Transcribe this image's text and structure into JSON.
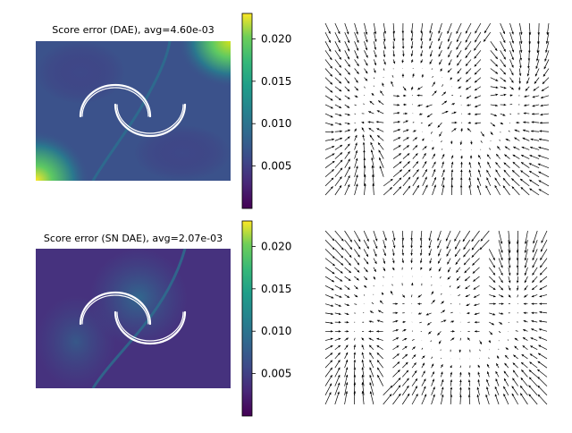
{
  "chart_data": [
    {
      "type": "heatmap",
      "title": "Score error (DAE), avg=4.60e-03",
      "colormap": "viridis",
      "colorbar": {
        "range": [
          0.0,
          0.023
        ],
        "ticks": [
          0.005,
          0.01,
          0.015,
          0.02
        ],
        "tick_labels": [
          "0.005",
          "0.010",
          "0.015",
          "0.020"
        ]
      },
      "data_overlay": "two interleaved half-moon arcs (white)",
      "hotspots": [
        {
          "location": "top-right corner",
          "value": 0.022
        },
        {
          "location": "bottom-left corner",
          "value": 0.022
        }
      ],
      "axes_visible": false,
      "average_error": 0.0046
    },
    {
      "type": "heatmap",
      "title": "Score error (SN DAE), avg=2.07e-03",
      "colormap": "viridis",
      "colorbar": {
        "range": [
          0.0,
          0.023
        ],
        "ticks": [
          0.005,
          0.01,
          0.015,
          0.02
        ],
        "tick_labels": [
          "0.005",
          "0.010",
          "0.015",
          "0.020"
        ]
      },
      "data_overlay": "two interleaved half-moon arcs (white)",
      "axes_visible": false,
      "average_error": 0.00207
    },
    {
      "type": "quiver",
      "title": "",
      "description_of_field": "score vector field of DAE, arrows pointing toward the moon-shaped data manifold",
      "axes_visible": false
    },
    {
      "type": "quiver",
      "title": "",
      "description_of_field": "score vector field of SN DAE, arrows pointing toward the moon-shaped data manifold",
      "axes_visible": false
    }
  ],
  "colors": {
    "background": "#ffffff",
    "arc": "#ffffff",
    "arrow": "#000000"
  }
}
